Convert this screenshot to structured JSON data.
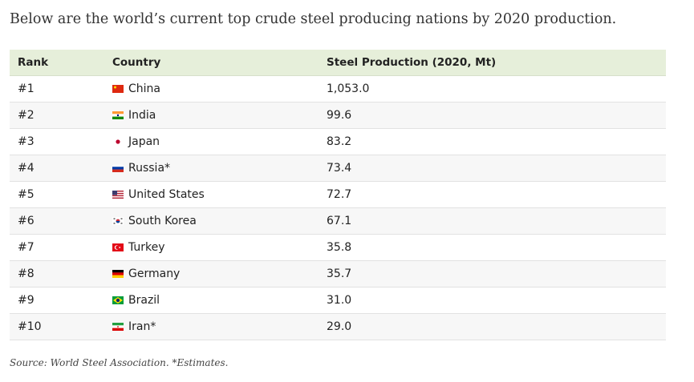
{
  "intro": "Below are the world’s current top crude steel producing nations by 2020 production.",
  "table": {
    "header": [
      "Rank",
      "Country",
      "Steel Production (2020, Mt)"
    ],
    "rows": [
      [
        "#1",
        "China",
        "1,053.0"
      ],
      [
        "#2",
        "India",
        "99.6"
      ],
      [
        "#3",
        "Japan",
        "83.2"
      ],
      [
        "#4",
        "Russia*",
        "73.4"
      ],
      [
        "#5",
        "United States",
        "72.7"
      ],
      [
        "#6",
        "South Korea",
        "67.1"
      ],
      [
        "#7",
        "Turkey",
        "35.8"
      ],
      [
        "#8",
        "Germany",
        "35.7"
      ],
      [
        "#9",
        "Brazil",
        "31.0"
      ],
      [
        "#10",
        "Iran*",
        "29.0"
      ]
    ]
  },
  "source": "Source: World Steel Association. *Estimates."
}
